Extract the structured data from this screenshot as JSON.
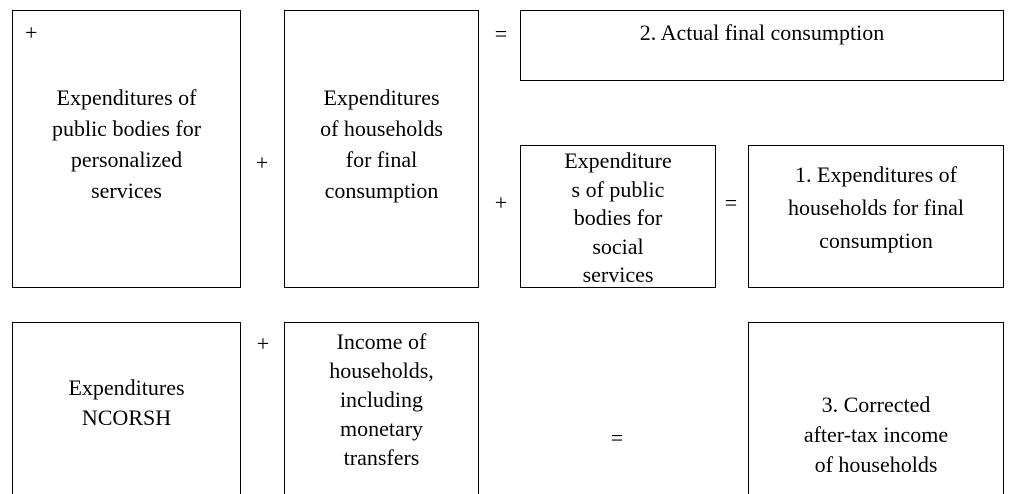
{
  "boxes": [
    {
      "marker": "+",
      "lines": [
        "Expenditures of",
        "public bodies for",
        "personalized",
        "services"
      ]
    },
    {
      "lines": [
        "Expenditures",
        "of households",
        "for final",
        "consumption"
      ]
    },
    {
      "lines": [
        "2. Actual final consumption"
      ]
    },
    {
      "lines": [
        "Expenditure",
        "s of public",
        "bodies for",
        "social",
        "services"
      ]
    },
    {
      "lines": [
        "1. Expenditures of",
        "households for final",
        "consumption"
      ]
    },
    {
      "lines": [
        "Expenditures",
        "NCORSH"
      ]
    },
    {
      "lines": [
        "Income of",
        "households,",
        "including",
        "monetary",
        "transfers"
      ]
    },
    {
      "lines": [
        "3. Corrected",
        "after-tax income",
        "of households"
      ]
    }
  ],
  "operators": [
    "+",
    "=",
    "+",
    "=",
    "+",
    "="
  ]
}
